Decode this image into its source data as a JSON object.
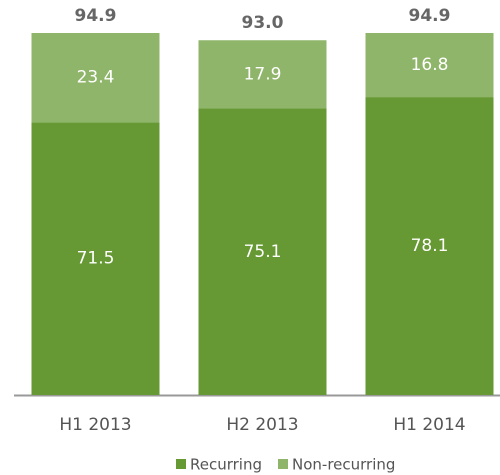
{
  "chart_data": {
    "type": "stacked_bar",
    "categories": [
      "H1 2013",
      "H2 2013",
      "H1 2014"
    ],
    "series": [
      {
        "name": "Recurring",
        "color": "#669933",
        "values": [
          71.5,
          75.1,
          78.1
        ]
      },
      {
        "name": "Non-recurring",
        "color": "#8fb56a",
        "values": [
          23.4,
          17.9,
          16.8
        ]
      }
    ],
    "totals": {
      "values": [
        94.9,
        93.0,
        94.9
      ],
      "value_labels": [
        "94.9",
        "93.0",
        "94.9"
      ]
    },
    "legend": "bottom"
  }
}
